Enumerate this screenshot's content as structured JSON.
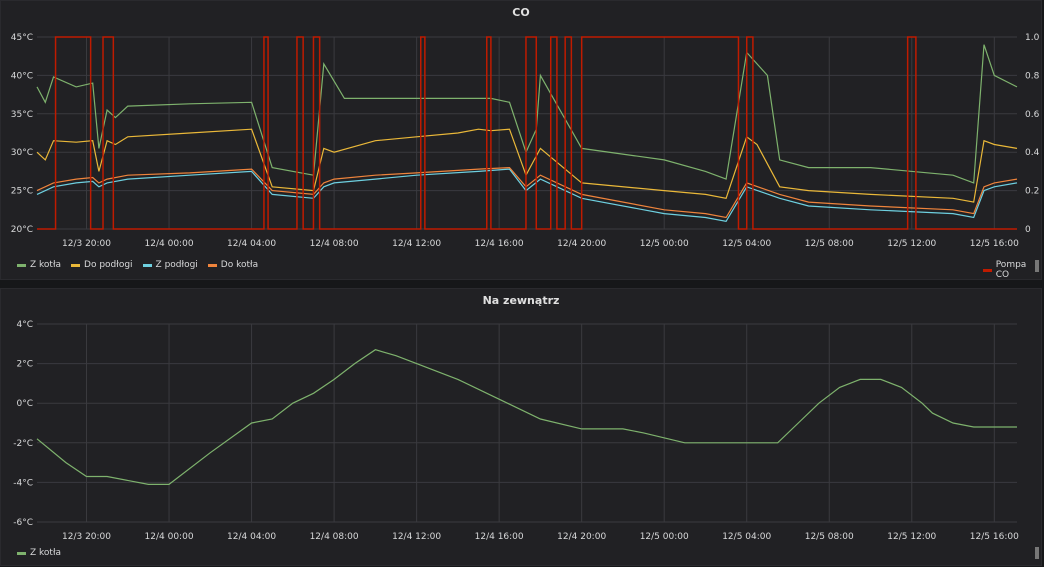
{
  "panels": {
    "co": {
      "title": "CO"
    },
    "outside": {
      "title": "Na zewnątrz"
    }
  },
  "colors": {
    "green": "#7eb26d",
    "yellow": "#eab839",
    "cyan": "#6ed0e0",
    "orange": "#ef843c",
    "red": "#bf1b00",
    "background": "#212124",
    "grid": "#3a3a3f"
  },
  "chart_data": [
    {
      "type": "line",
      "title": "CO",
      "x_ticks": [
        "12/3 20:00",
        "12/4 00:00",
        "12/4 04:00",
        "12/4 08:00",
        "12/4 12:00",
        "12/4 16:00",
        "12/4 20:00",
        "12/5 00:00",
        "12/5 04:00",
        "12/5 08:00",
        "12/5 12:00",
        "12/5 16:00"
      ],
      "x_range_hours": [
        -2.4,
        45.1
      ],
      "y_left": {
        "ticks": [
          "20°C",
          "25°C",
          "30°C",
          "35°C",
          "40°C",
          "45°C"
        ],
        "ylim": [
          20,
          45
        ],
        "unit": "°C"
      },
      "y_right": {
        "ticks": [
          "0",
          "0.2",
          "0.4",
          "0.6",
          "0.8",
          "1.0"
        ],
        "ylim": [
          0,
          1
        ]
      },
      "grid": true,
      "legend": {
        "position": "bottom-left",
        "right_axis_entries": [
          "Pompa CO"
        ]
      },
      "series": [
        {
          "name": "Z kotła",
          "axis": "left",
          "color": "#7eb26d",
          "x": [
            -2.4,
            -2.0,
            -1.6,
            -0.5,
            0.3,
            0.6,
            1.0,
            1.4,
            2.0,
            5.0,
            8.0,
            9.0,
            11.0,
            11.5,
            12.5,
            14.0,
            16.0,
            18.0,
            19.0,
            19.6,
            20.5,
            21.3,
            21.8,
            22.0,
            24.0,
            28.0,
            30.0,
            31.0,
            32.0,
            33.0,
            33.6,
            35.0,
            38.0,
            42.0,
            43.0,
            43.5,
            44.0,
            45.1
          ],
          "y": [
            38.5,
            36.5,
            39.8,
            38.5,
            39.0,
            30.5,
            35.5,
            34.5,
            36.0,
            36.3,
            36.5,
            28.0,
            27.0,
            41.5,
            37.0,
            37.0,
            37.0,
            37.0,
            37.0,
            37.0,
            36.5,
            30.0,
            33.0,
            40.0,
            30.5,
            29.0,
            27.5,
            26.5,
            43.0,
            40.0,
            29.0,
            28.0,
            28.0,
            27.0,
            26.0,
            44.0,
            40.0,
            38.5
          ]
        },
        {
          "name": "Do podłogi",
          "axis": "left",
          "color": "#eab839",
          "x": [
            -2.4,
            -2.0,
            -1.6,
            -0.5,
            0.3,
            0.6,
            1.0,
            1.4,
            2.0,
            5.0,
            8.0,
            9.0,
            11.0,
            11.5,
            12.0,
            14.0,
            16.0,
            18.0,
            19.0,
            19.6,
            20.5,
            21.3,
            22.0,
            24.0,
            28.0,
            30.0,
            31.0,
            32.0,
            32.5,
            33.6,
            35.0,
            38.0,
            42.0,
            43.0,
            43.5,
            44.0,
            45.1
          ],
          "y": [
            30.0,
            29.0,
            31.5,
            31.3,
            31.5,
            27.5,
            31.5,
            31.0,
            32.0,
            32.5,
            33.0,
            25.5,
            25.0,
            30.5,
            30.0,
            31.5,
            32.0,
            32.5,
            33.0,
            32.8,
            33.0,
            27.0,
            30.5,
            26.0,
            25.0,
            24.5,
            24.0,
            32.0,
            31.0,
            25.5,
            25.0,
            24.5,
            24.0,
            23.5,
            31.5,
            31.0,
            30.5
          ]
        },
        {
          "name": "Z podłogi",
          "axis": "left",
          "color": "#6ed0e0",
          "x": [
            -2.4,
            -1.6,
            -0.5,
            0.3,
            0.6,
            1.0,
            2.0,
            5.0,
            8.0,
            9.0,
            11.0,
            11.5,
            12.0,
            14.0,
            16.0,
            19.0,
            20.5,
            21.3,
            22.0,
            24.0,
            28.0,
            30.0,
            31.0,
            32.0,
            33.6,
            35.0,
            38.0,
            42.0,
            43.0,
            43.5,
            44.0,
            45.1
          ],
          "y": [
            24.5,
            25.5,
            26.0,
            26.2,
            25.5,
            26.0,
            26.5,
            27.0,
            27.5,
            24.5,
            24.0,
            25.5,
            26.0,
            26.5,
            27.0,
            27.5,
            27.8,
            25.0,
            26.5,
            24.0,
            22.0,
            21.5,
            21.0,
            25.5,
            24.0,
            23.0,
            22.5,
            22.0,
            21.5,
            25.0,
            25.5,
            26.0
          ]
        },
        {
          "name": "Do kotła",
          "axis": "left",
          "color": "#ef843c",
          "x": [
            -2.4,
            -1.6,
            -0.5,
            0.3,
            0.6,
            1.0,
            2.0,
            5.0,
            8.0,
            9.0,
            11.0,
            11.5,
            12.0,
            14.0,
            16.0,
            19.0,
            20.5,
            21.3,
            22.0,
            24.0,
            28.0,
            30.0,
            31.0,
            32.0,
            33.6,
            35.0,
            38.0,
            42.0,
            43.0,
            43.5,
            44.0,
            45.1
          ],
          "y": [
            25.0,
            26.0,
            26.5,
            26.7,
            26.0,
            26.5,
            27.0,
            27.3,
            27.8,
            25.0,
            24.5,
            26.0,
            26.5,
            27.0,
            27.3,
            27.8,
            28.0,
            25.5,
            27.0,
            24.5,
            22.5,
            22.0,
            21.5,
            26.0,
            24.5,
            23.5,
            23.0,
            22.5,
            22.0,
            25.5,
            26.0,
            26.5
          ]
        },
        {
          "name": "Pompa CO",
          "axis": "right",
          "color": "#bf1b00",
          "on_intervals_hours": [
            [
              -1.5,
              0.2
            ],
            [
              0.8,
              1.3
            ],
            [
              8.6,
              8.8
            ],
            [
              10.2,
              10.5
            ],
            [
              11.0,
              11.3
            ],
            [
              16.2,
              16.4
            ],
            [
              19.4,
              19.6
            ],
            [
              21.3,
              21.8
            ],
            [
              22.5,
              22.8
            ],
            [
              23.2,
              23.5
            ],
            [
              24.0,
              31.6
            ],
            [
              32.0,
              32.3
            ],
            [
              39.8,
              40.2
            ]
          ]
        }
      ]
    },
    {
      "type": "line",
      "title": "Na zewnątrz",
      "x_ticks": [
        "12/3 20:00",
        "12/4 00:00",
        "12/4 04:00",
        "12/4 08:00",
        "12/4 12:00",
        "12/4 16:00",
        "12/4 20:00",
        "12/5 00:00",
        "12/5 04:00",
        "12/5 08:00",
        "12/5 12:00",
        "12/5 16:00"
      ],
      "x_range_hours": [
        -2.4,
        45.1
      ],
      "y_left": {
        "ticks": [
          "-6°C",
          "-4°C",
          "-2°C",
          "0°C",
          "2°C",
          "4°C"
        ],
        "ylim": [
          -6,
          4
        ],
        "unit": "°C"
      },
      "grid": true,
      "legend": {
        "position": "bottom-left"
      },
      "series": [
        {
          "name": "Z kotła",
          "color": "#7eb26d",
          "x": [
            -2.4,
            -1.0,
            0.0,
            1.0,
            3.0,
            4.0,
            6.0,
            8.0,
            9.0,
            10.0,
            11.0,
            12.0,
            13.0,
            14.0,
            15.0,
            16.0,
            18.0,
            20.0,
            22.0,
            24.0,
            25.0,
            26.0,
            27.0,
            29.0,
            31.0,
            32.0,
            33.5,
            34.5,
            35.5,
            36.5,
            37.5,
            38.5,
            39.5,
            40.5,
            41.0,
            42.0,
            43.0,
            44.0,
            45.1
          ],
          "y": [
            -1.8,
            -3.0,
            -3.7,
            -3.7,
            -4.1,
            -4.1,
            -2.5,
            -1.0,
            -0.8,
            0.0,
            0.5,
            1.2,
            2.0,
            2.7,
            2.4,
            2.0,
            1.2,
            0.2,
            -0.8,
            -1.3,
            -1.3,
            -1.3,
            -1.5,
            -2.0,
            -2.0,
            -2.0,
            -2.0,
            -1.0,
            0.0,
            0.8,
            1.2,
            1.2,
            0.8,
            0.0,
            -0.5,
            -1.0,
            -1.2,
            -1.2,
            -1.2
          ]
        }
      ]
    }
  ]
}
